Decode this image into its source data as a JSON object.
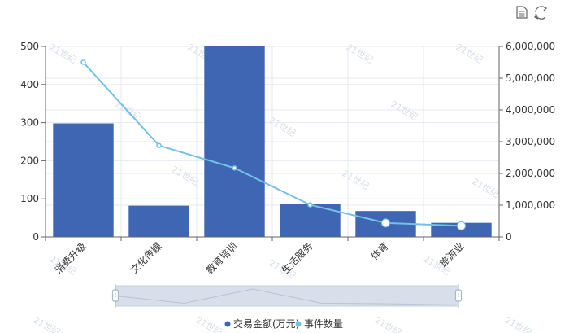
{
  "toolbar": {
    "data_view_icon": "document-icon",
    "restore_icon": "refresh-icon"
  },
  "watermark": "21世纪",
  "colors": {
    "bar": "#3e66b3",
    "line": "#73c0e8",
    "axis": "#666666",
    "grid": "#e6e9f0",
    "slider_fill": "#d8deea",
    "slider_handle": "#a7b7cc"
  },
  "chart_data": {
    "type": "bar",
    "categories": [
      "消费升级",
      "文化传媒",
      "教育培训",
      "生活服务",
      "体育",
      "旅游业"
    ],
    "series": [
      {
        "name": "交易金额(万元)",
        "type": "bar",
        "axis": "left",
        "values": [
          298,
          82,
          500,
          87,
          68,
          37
        ]
      },
      {
        "name": "事件数量",
        "type": "line",
        "axis": "right",
        "values": [
          5500000,
          2880000,
          2170000,
          1010000,
          440000,
          350000
        ]
      }
    ],
    "y_left": {
      "ylim": [
        0,
        500
      ],
      "ticks": [
        "0",
        "100",
        "200",
        "300",
        "400",
        "500"
      ]
    },
    "y_right": {
      "ylim": [
        0,
        6000000
      ],
      "ticks": [
        "0",
        "1,000,000",
        "2,000,000",
        "3,000,000",
        "4,000,000",
        "5,000,000",
        "6,000,000"
      ]
    },
    "legend_position": "bottom-center",
    "grid": true
  }
}
